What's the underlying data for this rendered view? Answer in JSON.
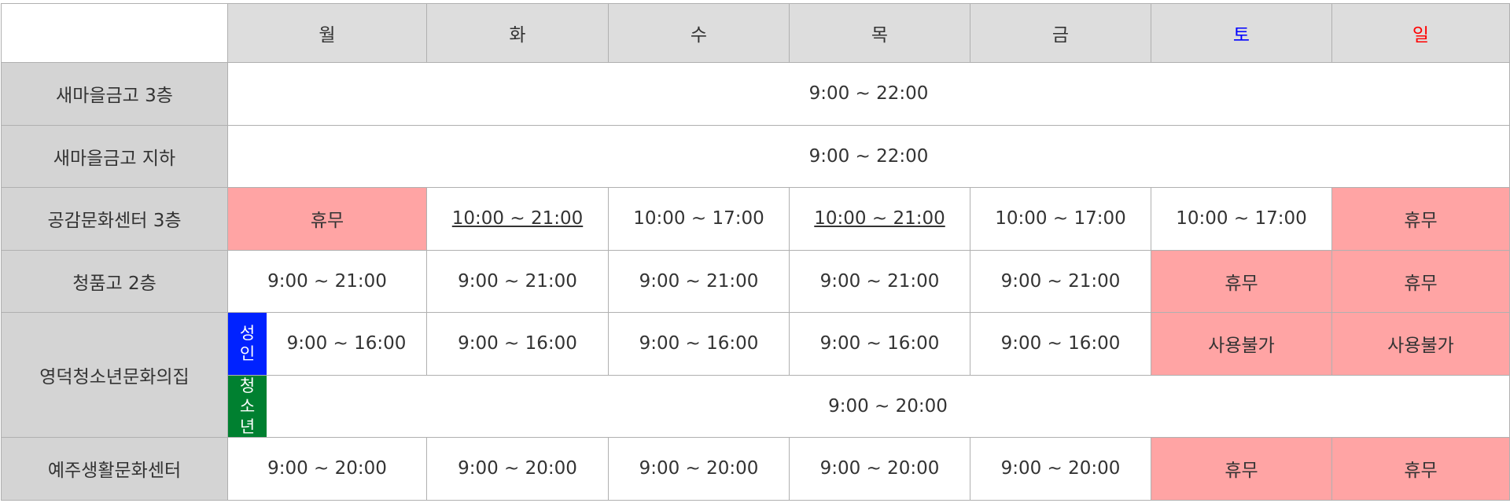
{
  "header": {
    "days": [
      "월",
      "화",
      "수",
      "목",
      "금",
      "토",
      "일"
    ]
  },
  "colors": {
    "saturday": "#0000ff",
    "sunday": "#ff0000",
    "closed": "#ffa4a4",
    "adult_badge": "#0022ff",
    "youth_badge": "#008030"
  },
  "rows": {
    "r0": {
      "place": "새마을금고 3층",
      "all": "9:00 ~ 22:00"
    },
    "r1": {
      "place": "새마을금고 지하",
      "all": "9:00 ~ 22:00"
    },
    "r2": {
      "place": "공감문화센터 3층",
      "mon": "휴무",
      "tue": "10:00 ~ 21:00",
      "wed": "10:00 ~ 17:00",
      "thu": "10:00 ~ 21:00",
      "fri": "10:00 ~ 17:00",
      "sat": "10:00 ~ 17:00",
      "sun": "휴무"
    },
    "r3": {
      "place": "청품고 2층",
      "mon": "9:00 ~ 21:00",
      "tue": "9:00 ~ 21:00",
      "wed": "9:00 ~ 21:00",
      "thu": "9:00 ~ 21:00",
      "fri": "9:00 ~ 21:00",
      "sat": "휴무",
      "sun": "휴무"
    },
    "r4": {
      "place": "영덕청소년문화의집",
      "adult_badge": [
        "성",
        "인"
      ],
      "youth_badge": [
        "청",
        "소",
        "년"
      ],
      "adult": {
        "mon": "9:00 ~ 16:00",
        "tue": "9:00 ~ 16:00",
        "wed": "9:00 ~ 16:00",
        "thu": "9:00 ~ 16:00",
        "fri": "9:00 ~ 16:00",
        "sat": "사용불가",
        "sun": "사용불가"
      },
      "youth": {
        "all": "9:00 ~ 20:00"
      }
    },
    "r5": {
      "place": "예주생활문화센터",
      "mon": "9:00 ~ 20:00",
      "tue": "9:00 ~ 20:00",
      "wed": "9:00 ~ 20:00",
      "thu": "9:00 ~ 20:00",
      "fri": "9:00 ~ 20:00",
      "sat": "휴무",
      "sun": "휴무"
    }
  }
}
